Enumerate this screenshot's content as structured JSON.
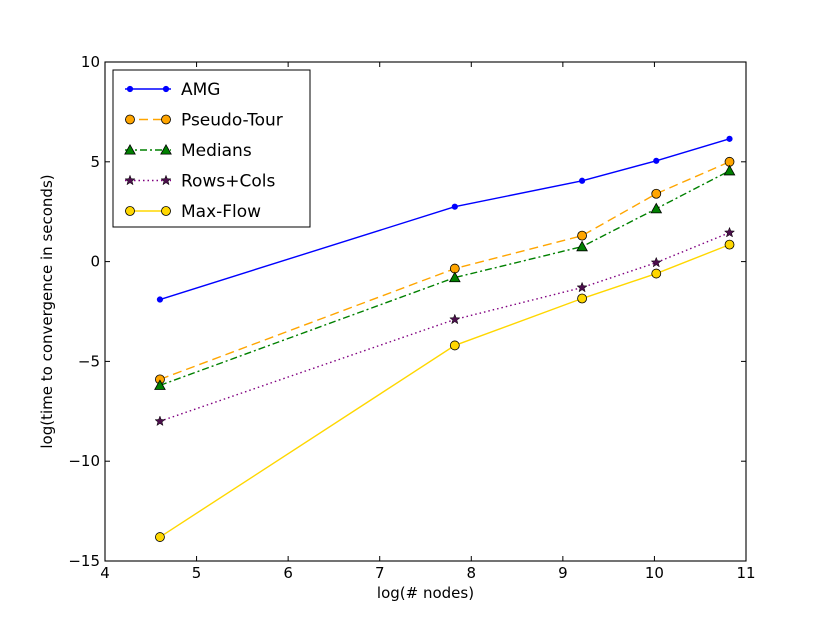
{
  "chart_data": {
    "type": "line",
    "title": "",
    "xlabel": "log(# nodes)",
    "ylabel": "log(time to convergence in seconds)",
    "xlim": [
      4,
      11
    ],
    "ylim": [
      -15,
      10
    ],
    "xticks": [
      4,
      5,
      6,
      7,
      8,
      9,
      10,
      11
    ],
    "yticks": [
      -15,
      -10,
      -5,
      0,
      5,
      10
    ],
    "xtick_labels": [
      "4",
      "5",
      "6",
      "7",
      "8",
      "9",
      "10",
      "11"
    ],
    "ytick_labels": [
      "−15",
      "−10",
      "−5",
      "0",
      "5",
      "10"
    ],
    "legend_position": "top-left",
    "x": [
      4.6,
      7.82,
      9.21,
      10.02,
      10.82
    ],
    "series": [
      {
        "name": "AMG",
        "values": [
          -1.9,
          2.75,
          4.05,
          5.05,
          6.15
        ],
        "color": "#0000ff",
        "dash": "",
        "marker": "dot",
        "fill": "#0000ff"
      },
      {
        "name": "Pseudo-Tour",
        "values": [
          -5.9,
          -0.35,
          1.3,
          3.4,
          5.0
        ],
        "color": "#ffa500",
        "dash": "9,5",
        "marker": "circle",
        "fill": "#ffa500"
      },
      {
        "name": "Medians",
        "values": [
          -6.2,
          -0.8,
          0.75,
          2.65,
          4.55
        ],
        "color": "#008000",
        "dash": "7,3,2,3",
        "marker": "triangle",
        "fill": "#008000"
      },
      {
        "name": "Rows+Cols",
        "values": [
          -8.0,
          -2.9,
          -1.3,
          -0.05,
          1.45
        ],
        "color": "#800080",
        "dash": "1.5,3",
        "marker": "star",
        "fill": "#4b0f4b"
      },
      {
        "name": "Max-Flow",
        "values": [
          -13.8,
          -4.2,
          -1.85,
          -0.6,
          0.85
        ],
        "color": "#ffd700",
        "dash": "",
        "marker": "circle",
        "fill": "#ffd700"
      }
    ]
  }
}
